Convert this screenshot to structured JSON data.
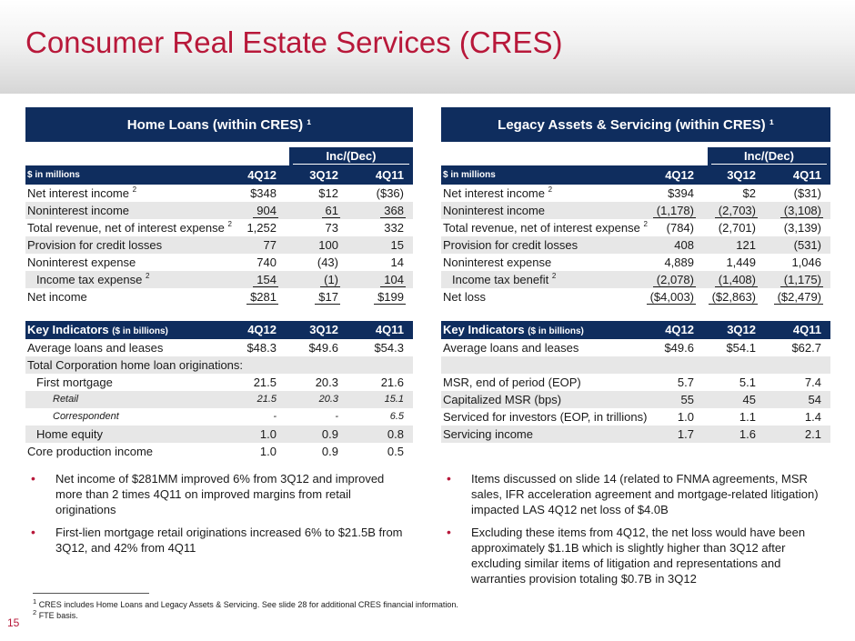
{
  "title": "Consumer Real Estate Services (CRES)",
  "page_number": "15",
  "colors": {
    "title": "#b8183a",
    "navy": "#0f2d5e",
    "shade": "#e7e7e7"
  },
  "home_loans": {
    "panel_title": "Home Loans (within CRES) ¹",
    "incdec": "Inc/(Dec)",
    "unit_label": "$ in millions",
    "cols": [
      "4Q12",
      "3Q12",
      "4Q11"
    ],
    "rows": [
      {
        "label": "Net interest income",
        "sup": "2",
        "v": [
          "$348",
          "$12",
          "($36)"
        ]
      },
      {
        "label": "Noninterest income",
        "sup": "",
        "v": [
          "904",
          "61",
          "368"
        ]
      },
      {
        "label": "Total revenue, net of interest expense",
        "sup": "2",
        "v": [
          "1,252",
          "73",
          "332"
        ]
      },
      {
        "label": "Provision for credit losses",
        "sup": "",
        "v": [
          "77",
          "100",
          "15"
        ]
      },
      {
        "label": "Noninterest expense",
        "sup": "",
        "v": [
          "740",
          "(43)",
          "14"
        ]
      },
      {
        "label": "Income tax expense",
        "sup": "2",
        "v": [
          "154",
          "(1)",
          "104"
        ]
      },
      {
        "label": "Net income",
        "sup": "",
        "v": [
          "$281",
          "$17",
          "$199"
        ]
      }
    ],
    "ki_label": "Key Indicators",
    "ki_unit": "($ in billions)",
    "ki_rows": [
      {
        "label": "Average loans and leases",
        "v": [
          "$48.3",
          "$49.6",
          "$54.3"
        ]
      },
      {
        "label": "Total Corporation home loan originations:",
        "v": [
          "",
          "",
          ""
        ]
      },
      {
        "label": "First mortgage",
        "v": [
          "21.5",
          "20.3",
          "21.6"
        ]
      },
      {
        "label": "Retail",
        "v": [
          "21.5",
          "20.3",
          "15.1"
        ]
      },
      {
        "label": "Correspondent",
        "v": [
          "-",
          "-",
          "6.5"
        ]
      },
      {
        "label": "Home equity",
        "v": [
          "1.0",
          "0.9",
          "0.8"
        ]
      },
      {
        "label": "Core production income",
        "v": [
          "1.0",
          "0.9",
          "0.5"
        ]
      }
    ],
    "bullets": [
      "Net income of $281MM improved 6% from 3Q12 and improved more than 2 times 4Q11 on improved margins from retail originations",
      "First-lien mortgage retail originations increased 6% to $21.5B from 3Q12, and 42% from 4Q11"
    ]
  },
  "legacy": {
    "panel_title": "Legacy Assets & Servicing (within CRES) ¹",
    "incdec": "Inc/(Dec)",
    "unit_label": "$ in millions",
    "cols": [
      "4Q12",
      "3Q12",
      "4Q11"
    ],
    "rows": [
      {
        "label": "Net interest income",
        "sup": "2",
        "v": [
          "$394",
          "$2",
          "($31)"
        ]
      },
      {
        "label": "Noninterest income",
        "sup": "",
        "v": [
          "(1,178)",
          "(2,703)",
          "(3,108)"
        ]
      },
      {
        "label": "Total revenue, net of interest expense",
        "sup": "2",
        "v": [
          "(784)",
          "(2,701)",
          "(3,139)"
        ]
      },
      {
        "label": "Provision for credit losses",
        "sup": "",
        "v": [
          "408",
          "121",
          "(531)"
        ]
      },
      {
        "label": "Noninterest expense",
        "sup": "",
        "v": [
          "4,889",
          "1,449",
          "1,046"
        ]
      },
      {
        "label": "Income tax benefit",
        "sup": "2",
        "v": [
          "(2,078)",
          "(1,408)",
          "(1,175)"
        ]
      },
      {
        "label": "Net loss",
        "sup": "",
        "v": [
          "($4,003)",
          "($2,863)",
          "($2,479)"
        ]
      }
    ],
    "ki_label": "Key Indicators",
    "ki_unit": "($ in billions)",
    "ki_rows": [
      {
        "label": "Average loans and leases",
        "v": [
          "$49.6",
          "$54.1",
          "$62.7"
        ]
      },
      {
        "label": "",
        "v": [
          "",
          "",
          ""
        ]
      },
      {
        "label": "MSR, end of period (EOP)",
        "v": [
          "5.7",
          "5.1",
          "7.4"
        ]
      },
      {
        "label": "Capitalized MSR (bps)",
        "v": [
          "55",
          "45",
          "54"
        ]
      },
      {
        "label": "Serviced for investors (EOP, in trillions)",
        "v": [
          "1.0",
          "1.1",
          "1.4"
        ]
      },
      {
        "label": "Servicing income",
        "v": [
          "1.7",
          "1.6",
          "2.1"
        ]
      }
    ],
    "bullets": [
      "Items discussed on slide 14 (related to FNMA agreements, MSR sales, IFR acceleration agreement and mortgage-related litigation) impacted LAS 4Q12 net loss of $4.0B",
      "Excluding these items from 4Q12, the net loss would have been approximately $1.1B which is slightly higher than 3Q12 after excluding similar items of litigation and representations and warranties provision totaling $0.7B in 3Q12"
    ]
  },
  "footnotes": [
    {
      "sup": "1",
      "text": "CRES includes Home Loans and Legacy Assets & Servicing. See slide 28 for additional CRES financial information."
    },
    {
      "sup": "2",
      "text": "FTE basis."
    }
  ]
}
